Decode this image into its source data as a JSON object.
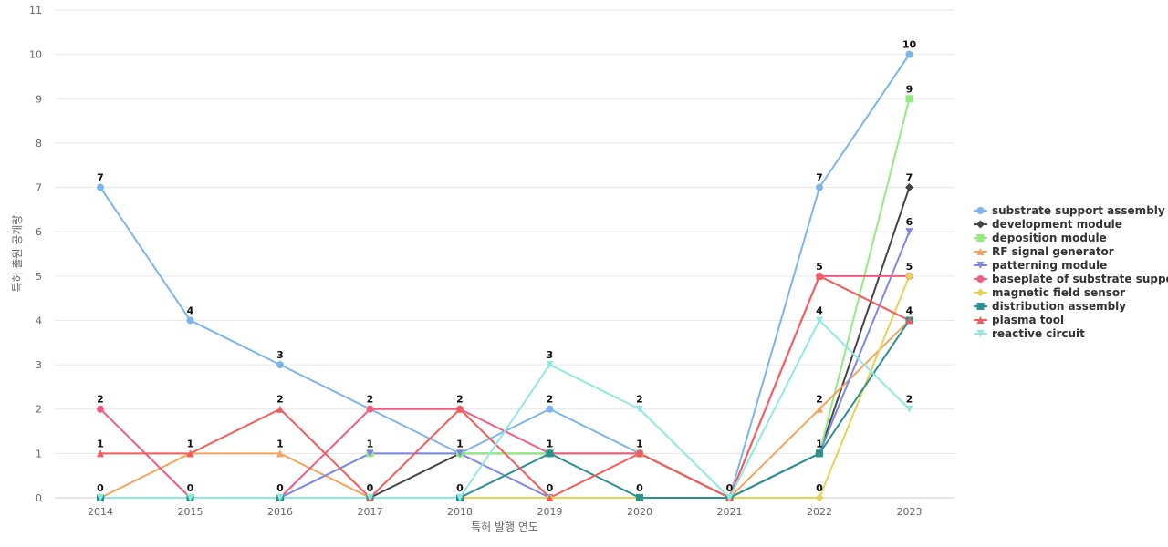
{
  "chart_data": {
    "type": "line",
    "xlabel": "특허 발행 연도",
    "ylabel": "특허 출원 공개량",
    "ylim": [
      0,
      11
    ],
    "grid": true,
    "legend": "right",
    "categories": [
      "2014",
      "2015",
      "2016",
      "2017",
      "2018",
      "2019",
      "2020",
      "2021",
      "2022",
      "2023"
    ],
    "series": [
      {
        "name": "substrate support assembly",
        "color": "#7cb5ec",
        "marker": "circle",
        "values": [
          7,
          4,
          3,
          2,
          1,
          2,
          1,
          0,
          7,
          10
        ]
      },
      {
        "name": "development module",
        "color": "#434348",
        "marker": "diamond",
        "values": [
          0,
          0,
          0,
          0,
          1,
          1,
          1,
          0,
          1,
          7
        ]
      },
      {
        "name": "deposition module",
        "color": "#90ed7d",
        "marker": "square",
        "values": [
          0,
          0,
          0,
          1,
          1,
          1,
          1,
          0,
          1,
          9
        ]
      },
      {
        "name": "RF signal generator",
        "color": "#f7a35c",
        "marker": "triangle",
        "values": [
          0,
          1,
          1,
          0,
          0,
          0,
          0,
          0,
          2,
          4
        ]
      },
      {
        "name": "patterning module",
        "color": "#8085e9",
        "marker": "triangle-down",
        "values": [
          0,
          0,
          0,
          1,
          1,
          0,
          0,
          0,
          1,
          6
        ]
      },
      {
        "name": "baseplate of substrate support",
        "color": "#f15c80",
        "marker": "circle",
        "values": [
          2,
          0,
          0,
          2,
          2,
          1,
          1,
          0,
          5,
          5
        ]
      },
      {
        "name": "magnetic field sensor",
        "color": "#e4d354",
        "marker": "diamond",
        "values": [
          0,
          0,
          0,
          0,
          0,
          0,
          0,
          0,
          0,
          5
        ]
      },
      {
        "name": "distribution assembly",
        "color": "#2b908f",
        "marker": "square",
        "values": [
          0,
          0,
          0,
          0,
          0,
          1,
          0,
          0,
          1,
          4
        ]
      },
      {
        "name": "plasma tool",
        "color": "#f45b5b",
        "marker": "triangle",
        "values": [
          1,
          1,
          2,
          0,
          2,
          0,
          1,
          0,
          5,
          4
        ]
      },
      {
        "name": "reactive circuit",
        "color": "#91e8e1",
        "marker": "triangle-down",
        "values": [
          0,
          0,
          0,
          0,
          0,
          3,
          2,
          0,
          4,
          2
        ]
      }
    ],
    "data_labels": [
      {
        "x": "2014",
        "labels": [
          7,
          2,
          1,
          0
        ]
      },
      {
        "x": "2015",
        "labels": [
          4,
          1,
          0
        ]
      },
      {
        "x": "2016",
        "labels": [
          3,
          2,
          1,
          0
        ]
      },
      {
        "x": "2017",
        "labels": [
          2,
          1,
          0
        ]
      },
      {
        "x": "2018",
        "labels": [
          2,
          1,
          0
        ]
      },
      {
        "x": "2019",
        "labels": [
          3,
          2,
          1,
          0
        ]
      },
      {
        "x": "2020",
        "labels": [
          2,
          1,
          0
        ]
      },
      {
        "x": "2021",
        "labels": [
          0
        ]
      },
      {
        "x": "2022",
        "labels": [
          7,
          5,
          4,
          2,
          1,
          0
        ]
      },
      {
        "x": "2023",
        "labels": [
          10,
          9,
          7,
          6,
          5,
          4,
          2
        ]
      }
    ]
  }
}
